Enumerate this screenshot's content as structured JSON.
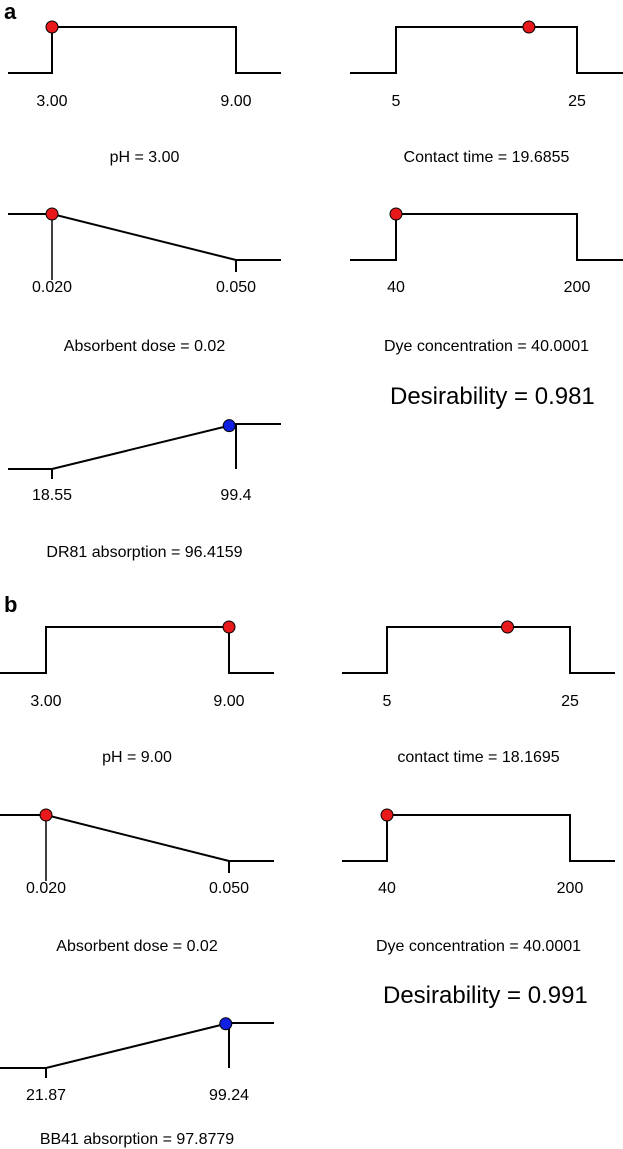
{
  "chart_data": [
    {
      "panel": "a",
      "type": "line",
      "desirability_label": "Desirability = 0.981",
      "desirability": 0.981,
      "factors": [
        {
          "id": "ph",
          "low_label": "3.00",
          "high_label": "9.00",
          "low": 3.0,
          "high": 9.0,
          "shape": "flat",
          "setting": 3.0,
          "label": "pH = 3.00",
          "marker_color": "#e8191b"
        },
        {
          "id": "contact-time",
          "low_label": "5",
          "high_label": "25",
          "low": 5,
          "high": 25,
          "shape": "flat",
          "setting": 19.6855,
          "label": "Contact time = 19.6855",
          "marker_color": "#e8191b"
        },
        {
          "id": "absorbent-dose",
          "low_label": "0.020",
          "high_label": "0.050",
          "low": 0.02,
          "high": 0.05,
          "shape": "minimize",
          "setting": 0.02,
          "label": "Absorbent dose = 0.02",
          "marker_color": "#e8191b"
        },
        {
          "id": "dye-concentration",
          "low_label": "40",
          "high_label": "200",
          "low": 40,
          "high": 200,
          "shape": "flat",
          "setting": 40.0001,
          "label": "Dye concentration = 40.0001",
          "marker_color": "#e8191b"
        },
        {
          "id": "absorption",
          "low_label": "18.55",
          "high_label": "99.4",
          "low": 18.55,
          "high": 99.4,
          "shape": "maximize",
          "setting": 96.4159,
          "label": "DR81 absorption = 96.4159",
          "marker_color": "#1020e0"
        }
      ]
    },
    {
      "panel": "b",
      "type": "line",
      "desirability_label": "Desirability = 0.991",
      "desirability": 0.991,
      "factors": [
        {
          "id": "ph",
          "low_label": "3.00",
          "high_label": "9.00",
          "low": 3.0,
          "high": 9.0,
          "shape": "flat",
          "setting": 9.0,
          "label": "pH = 9.00",
          "marker_color": "#e8191b"
        },
        {
          "id": "contact-time",
          "low_label": "5",
          "high_label": "25",
          "low": 5,
          "high": 25,
          "shape": "flat",
          "setting": 18.1695,
          "label": "contact time = 18.1695",
          "marker_color": "#e8191b"
        },
        {
          "id": "absorbent-dose",
          "low_label": "0.020",
          "high_label": "0.050",
          "low": 0.02,
          "high": 0.05,
          "shape": "minimize",
          "setting": 0.02,
          "label": "Absorbent dose = 0.02",
          "marker_color": "#e8191b"
        },
        {
          "id": "dye-concentration",
          "low_label": "40",
          "high_label": "200",
          "low": 40,
          "high": 200,
          "shape": "flat",
          "setting": 40.0001,
          "label": "Dye concentration = 40.0001",
          "marker_color": "#e8191b"
        },
        {
          "id": "absorption",
          "low_label": "21.87",
          "high_label": "99.24",
          "low": 21.87,
          "high": 99.24,
          "shape": "maximize",
          "setting": 97.8779,
          "label": "BB41 absorption = 97.8779",
          "marker_color": "#1020e0"
        }
      ]
    }
  ]
}
